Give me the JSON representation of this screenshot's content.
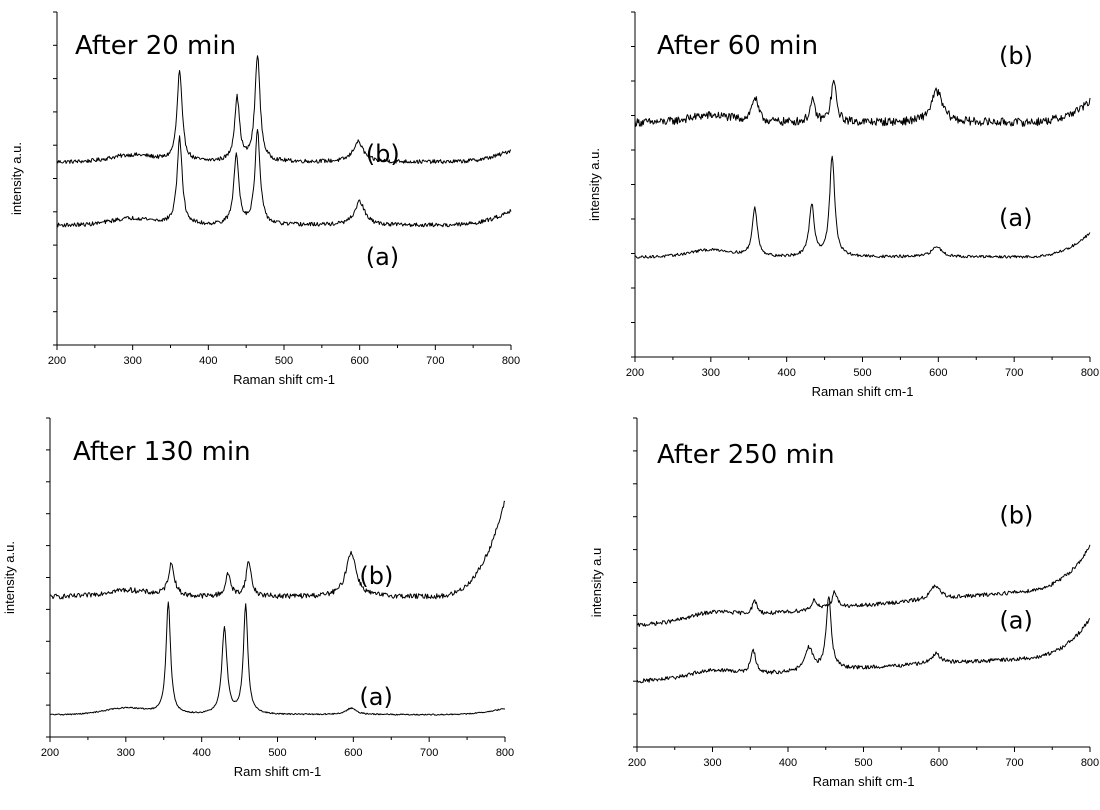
{
  "chart_data": [
    {
      "type": "line",
      "title": "After 20 min",
      "xlabel": "Raman shift cm-1",
      "ylabel": "intensity a.u.",
      "xlim": [
        200,
        800
      ],
      "ylim": [
        0,
        1
      ],
      "x_ticks": [
        "200",
        "300",
        "400",
        "500",
        "600",
        "700",
        "800"
      ],
      "series": [
        {
          "name": "(b)",
          "baseline": 0.55,
          "end_rise": 0.035,
          "noise": 0.006,
          "peaks": [
            [
              362,
              0.27,
              4
            ],
            [
              438,
              0.19,
              4
            ],
            [
              465,
              0.32,
              4
            ],
            [
              598,
              0.06,
              8
            ]
          ]
        },
        {
          "name": "(a)",
          "baseline": 0.36,
          "end_rise": 0.045,
          "noise": 0.006,
          "peaks": [
            [
              362,
              0.26,
              4
            ],
            [
              437,
              0.21,
              4
            ],
            [
              465,
              0.28,
              4
            ],
            [
              600,
              0.07,
              8
            ]
          ]
        }
      ],
      "label_data_pos": [
        [
          0.68,
          0.55
        ],
        [
          0.68,
          0.24
        ]
      ]
    },
    {
      "type": "line",
      "title": "After 60 min",
      "xlabel": "Raman shift cm-1",
      "ylabel": "intensity a.u.",
      "xlim": [
        200,
        800
      ],
      "ylim": [
        0,
        1
      ],
      "x_ticks": [
        "200",
        "300",
        "400",
        "500",
        "600",
        "700",
        "800"
      ],
      "series": [
        {
          "name": "(b)",
          "baseline": 0.68,
          "end_rise": 0.06,
          "noise": 0.012,
          "peaks": [
            [
              358,
              0.07,
              5
            ],
            [
              434,
              0.06,
              4
            ],
            [
              462,
              0.12,
              4
            ],
            [
              598,
              0.09,
              9
            ]
          ]
        },
        {
          "name": "(a)",
          "baseline": 0.29,
          "end_rise": 0.07,
          "noise": 0.004,
          "peaks": [
            [
              358,
              0.14,
              4
            ],
            [
              433,
              0.15,
              4
            ],
            [
              460,
              0.29,
              4
            ],
            [
              598,
              0.03,
              8
            ]
          ]
        }
      ],
      "label_data_pos": [
        [
          0.8,
          0.85
        ],
        [
          0.8,
          0.38
        ]
      ]
    },
    {
      "type": "line",
      "title": "After 130 min",
      "xlabel": "Ram shift cm-1",
      "ylabel": "intensity a.u.",
      "xlim": [
        200,
        800
      ],
      "ylim": [
        0,
        1
      ],
      "x_ticks": [
        "200",
        "300",
        "400",
        "500",
        "600",
        "700",
        "800"
      ],
      "series": [
        {
          "name": "(b)",
          "baseline": 0.44,
          "end_rise": 0.3,
          "noise": 0.008,
          "peaks": [
            [
              360,
              0.1,
              5
            ],
            [
              435,
              0.07,
              4
            ],
            [
              462,
              0.11,
              4
            ],
            [
              597,
              0.14,
              8
            ]
          ]
        },
        {
          "name": "(a)",
          "baseline": 0.07,
          "end_rise": 0.02,
          "noise": 0.002,
          "peaks": [
            [
              356,
              0.35,
              3.5
            ],
            [
              430,
              0.27,
              4
            ],
            [
              458,
              0.34,
              3.5
            ],
            [
              597,
              0.02,
              8
            ]
          ]
        }
      ],
      "label_data_pos": [
        [
          0.68,
          0.48
        ],
        [
          0.68,
          0.1
        ]
      ]
    },
    {
      "type": "line",
      "title": "After 250 min",
      "xlabel": "Raman shift cm-1",
      "ylabel": "intensity a.u",
      "xlim": [
        200,
        800
      ],
      "ylim": [
        0,
        1
      ],
      "x_ticks": [
        "200",
        "300",
        "400",
        "500",
        "600",
        "700",
        "800"
      ],
      "series": [
        {
          "name": "(b)",
          "baseline": 0.37,
          "slope": 0.12,
          "end_rise": 0.12,
          "noise": 0.006,
          "peaks": [
            [
              356,
              0.04,
              4
            ],
            [
              435,
              0.03,
              4
            ],
            [
              462,
              0.05,
              4
            ],
            [
              595,
              0.04,
              8
            ]
          ]
        },
        {
          "name": "(a)",
          "baseline": 0.2,
          "slope": 0.08,
          "end_rise": 0.11,
          "noise": 0.006,
          "peaks": [
            [
              354,
              0.07,
              4
            ],
            [
              428,
              0.07,
              6
            ],
            [
              454,
              0.22,
              4
            ],
            [
              596,
              0.03,
              8
            ]
          ]
        }
      ],
      "label_data_pos": [
        [
          0.8,
          0.68
        ],
        [
          0.8,
          0.36
        ]
      ]
    }
  ]
}
